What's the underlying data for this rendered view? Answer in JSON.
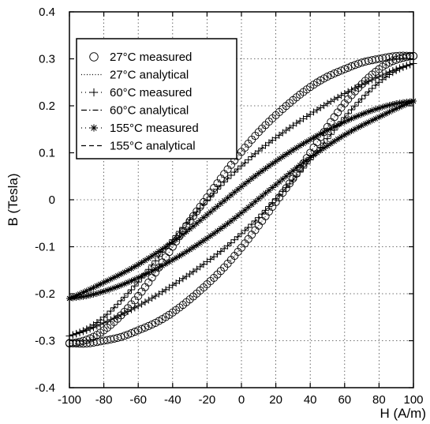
{
  "chart_data": {
    "type": "line",
    "title": "",
    "xlabel": "H (A/m)",
    "ylabel": "B (Tesla)",
    "xlim": [
      -100,
      100
    ],
    "ylim": [
      -0.4,
      0.4
    ],
    "xticks": [
      -100,
      -80,
      -60,
      -40,
      -20,
      0,
      20,
      40,
      60,
      80,
      100
    ],
    "yticks": [
      -0.4,
      -0.3,
      -0.2,
      -0.1,
      0,
      0.1,
      0.2,
      0.3,
      0.4
    ],
    "xtick_labels": [
      "-100",
      "-80",
      "-60",
      "-40",
      "-20",
      "0",
      "20",
      "40",
      "60",
      "80",
      "100"
    ],
    "ytick_labels": [
      "-0.4",
      "-0.3",
      "-0.2",
      "-0.1",
      "0",
      "0.1",
      "0.2",
      "0.3",
      "0.4"
    ],
    "grid": true,
    "grid_style": "dotted",
    "legend_position": "top-left",
    "series": [
      {
        "name": "27°C measured",
        "marker": "circle",
        "line": "none",
        "color": "#000000",
        "x_ascending": [
          -100,
          -90,
          -80,
          -70,
          -60,
          -50,
          -40,
          -30,
          -20,
          -10,
          0,
          10,
          20,
          30,
          40,
          50,
          60,
          70,
          80,
          90,
          100
        ],
        "y_ascending": [
          -0.305,
          -0.306,
          -0.3,
          -0.292,
          -0.278,
          -0.262,
          -0.24,
          -0.212,
          -0.18,
          -0.144,
          -0.102,
          -0.055,
          -0.005,
          0.045,
          0.1,
          0.155,
          0.205,
          0.246,
          0.278,
          0.298,
          0.306
        ],
        "x_descending": [
          100,
          90,
          80,
          70,
          60,
          50,
          40,
          30,
          20,
          10,
          0,
          -10,
          -20,
          -30,
          -40,
          -50,
          -60,
          -70,
          -80,
          -90,
          -100
        ],
        "y_descending": [
          0.306,
          0.306,
          0.3,
          0.292,
          0.278,
          0.262,
          0.24,
          0.212,
          0.18,
          0.144,
          0.102,
          0.055,
          0.005,
          -0.045,
          -0.1,
          -0.155,
          -0.205,
          -0.246,
          -0.278,
          -0.298,
          -0.306
        ]
      },
      {
        "name": "27°C analytical",
        "marker": "none",
        "line": "dotted",
        "color": "#000000",
        "x_ascending": [
          -100,
          -90,
          -80,
          -70,
          -60,
          -50,
          -40,
          -30,
          -20,
          -10,
          0,
          10,
          20,
          30,
          40,
          50,
          60,
          70,
          80,
          90,
          100
        ],
        "y_ascending": [
          -0.305,
          -0.306,
          -0.3,
          -0.292,
          -0.278,
          -0.262,
          -0.24,
          -0.212,
          -0.18,
          -0.144,
          -0.102,
          -0.055,
          -0.005,
          0.045,
          0.1,
          0.155,
          0.205,
          0.246,
          0.278,
          0.298,
          0.306
        ],
        "x_descending": [
          100,
          90,
          80,
          70,
          60,
          50,
          40,
          30,
          20,
          10,
          0,
          -10,
          -20,
          -30,
          -40,
          -50,
          -60,
          -70,
          -80,
          -90,
          -100
        ],
        "y_descending": [
          0.306,
          0.306,
          0.3,
          0.292,
          0.278,
          0.262,
          0.24,
          0.212,
          0.18,
          0.144,
          0.102,
          0.055,
          0.005,
          -0.045,
          -0.1,
          -0.155,
          -0.205,
          -0.246,
          -0.278,
          -0.298,
          -0.306
        ]
      },
      {
        "name": "60°C measured",
        "marker": "plus",
        "line": "none",
        "color": "#000000",
        "x_ascending": [
          -100,
          -90,
          -80,
          -70,
          -60,
          -50,
          -40,
          -30,
          -20,
          -10,
          0,
          10,
          20,
          30,
          40,
          50,
          60,
          70,
          80,
          90,
          100
        ],
        "y_ascending": [
          -0.29,
          -0.278,
          -0.262,
          -0.245,
          -0.226,
          -0.205,
          -0.182,
          -0.158,
          -0.132,
          -0.104,
          -0.072,
          -0.038,
          0.002,
          0.042,
          0.085,
          0.13,
          0.175,
          0.215,
          0.25,
          0.275,
          0.29
        ],
        "x_descending": [
          100,
          90,
          80,
          70,
          60,
          50,
          40,
          30,
          20,
          10,
          0,
          -10,
          -20,
          -30,
          -40,
          -50,
          -60,
          -70,
          -80,
          -90,
          -100
        ],
        "y_descending": [
          0.29,
          0.278,
          0.262,
          0.245,
          0.226,
          0.205,
          0.182,
          0.158,
          0.132,
          0.104,
          0.072,
          0.038,
          -0.002,
          -0.042,
          -0.085,
          -0.13,
          -0.175,
          -0.215,
          -0.25,
          -0.275,
          -0.29
        ]
      },
      {
        "name": "60°C analytical",
        "marker": "none",
        "line": "dashdot",
        "color": "#000000",
        "x_ascending": [
          -100,
          -90,
          -80,
          -70,
          -60,
          -50,
          -40,
          -30,
          -20,
          -10,
          0,
          10,
          20,
          30,
          40,
          50,
          60,
          70,
          80,
          90,
          100
        ],
        "y_ascending": [
          -0.29,
          -0.278,
          -0.262,
          -0.245,
          -0.226,
          -0.205,
          -0.182,
          -0.158,
          -0.132,
          -0.104,
          -0.072,
          -0.038,
          0.002,
          0.042,
          0.085,
          0.13,
          0.175,
          0.215,
          0.25,
          0.275,
          0.29
        ],
        "x_descending": [
          100,
          90,
          80,
          70,
          60,
          50,
          40,
          30,
          20,
          10,
          0,
          -10,
          -20,
          -30,
          -40,
          -50,
          -60,
          -70,
          -80,
          -90,
          -100
        ],
        "y_descending": [
          0.29,
          0.278,
          0.262,
          0.245,
          0.226,
          0.205,
          0.182,
          0.158,
          0.132,
          0.104,
          0.072,
          0.038,
          -0.002,
          -0.042,
          -0.085,
          -0.13,
          -0.175,
          -0.215,
          -0.25,
          -0.275,
          -0.29
        ]
      },
      {
        "name": "155°C measured",
        "marker": "asterisk",
        "line": "none",
        "color": "#000000",
        "x_ascending": [
          -100,
          -90,
          -80,
          -70,
          -60,
          -50,
          -40,
          -30,
          -20,
          -10,
          0,
          10,
          20,
          30,
          40,
          50,
          60,
          70,
          80,
          90,
          100
        ],
        "y_ascending": [
          -0.21,
          -0.205,
          -0.195,
          -0.182,
          -0.166,
          -0.148,
          -0.128,
          -0.106,
          -0.082,
          -0.056,
          -0.028,
          0.002,
          0.032,
          0.062,
          0.09,
          0.115,
          0.138,
          0.158,
          0.176,
          0.194,
          0.21
        ],
        "x_descending": [
          100,
          90,
          80,
          70,
          60,
          50,
          40,
          30,
          20,
          10,
          0,
          -10,
          -20,
          -30,
          -40,
          -50,
          -60,
          -70,
          -80,
          -90,
          -100
        ],
        "y_descending": [
          0.21,
          0.205,
          0.195,
          0.182,
          0.166,
          0.148,
          0.128,
          0.106,
          0.082,
          0.056,
          0.028,
          -0.002,
          -0.032,
          -0.062,
          -0.09,
          -0.115,
          -0.138,
          -0.158,
          -0.176,
          -0.194,
          -0.21
        ]
      },
      {
        "name": "155°C analytical",
        "marker": "none",
        "line": "dashed",
        "color": "#000000",
        "x_ascending": [
          -100,
          -90,
          -80,
          -70,
          -60,
          -50,
          -40,
          -30,
          -20,
          -10,
          0,
          10,
          20,
          30,
          40,
          50,
          60,
          70,
          80,
          90,
          100
        ],
        "y_ascending": [
          -0.21,
          -0.205,
          -0.195,
          -0.182,
          -0.166,
          -0.148,
          -0.128,
          -0.106,
          -0.082,
          -0.056,
          -0.028,
          0.002,
          0.032,
          0.062,
          0.09,
          0.115,
          0.138,
          0.158,
          0.176,
          0.194,
          0.21
        ],
        "x_descending": [
          100,
          90,
          80,
          70,
          60,
          50,
          40,
          30,
          20,
          10,
          0,
          -10,
          -20,
          -30,
          -40,
          -50,
          -60,
          -70,
          -80,
          -90,
          -100
        ],
        "y_descending": [
          0.21,
          0.205,
          0.195,
          0.182,
          0.166,
          0.148,
          0.128,
          0.106,
          0.082,
          0.056,
          0.028,
          -0.002,
          -0.032,
          -0.062,
          -0.09,
          -0.115,
          -0.138,
          -0.158,
          -0.176,
          -0.194,
          -0.21
        ]
      }
    ]
  }
}
